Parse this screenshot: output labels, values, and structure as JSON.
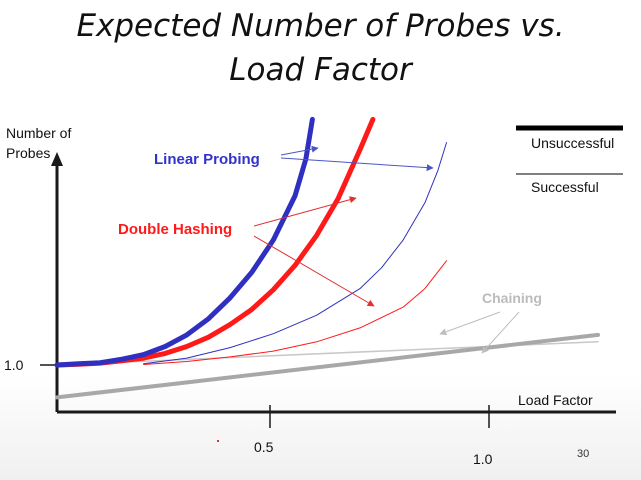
{
  "slide": {
    "title_line1": "Expected Number of Probes vs.",
    "title_line2": "Load Factor",
    "page_number": "30"
  },
  "chart_data": {
    "type": "line",
    "title": "Expected Number of Probes vs. Load Factor",
    "xlabel": "Load Factor",
    "ylabel": "Number of Probes",
    "x_ticks": [
      0.5,
      1.0
    ],
    "x_tick_labels": [
      "0.5",
      "1.0"
    ],
    "y_ticks": [
      1.0
    ],
    "y_tick_labels": [
      "1.0"
    ],
    "xlim": [
      0,
      1.25
    ],
    "ylim": [
      0,
      12
    ],
    "grid": false,
    "legend": {
      "position": "top-right",
      "entries": [
        {
          "label": "Unsuccessful",
          "style": "thick",
          "color": "#000000"
        },
        {
          "label": "Successful",
          "style": "thin",
          "color": "#000000"
        }
      ]
    },
    "series": [
      {
        "name": "Linear Probing",
        "case": "Unsuccessful",
        "color": "#3030c0",
        "style": "thick",
        "x": [
          0,
          0.05,
          0.1,
          0.15,
          0.2,
          0.25,
          0.3,
          0.35,
          0.4,
          0.45,
          0.5,
          0.55,
          0.575,
          0.59
        ],
        "y": [
          1.0,
          1.05,
          1.1,
          1.25,
          1.45,
          1.8,
          2.3,
          3.0,
          3.9,
          5.0,
          6.4,
          8.3,
          9.9,
          11.6
        ]
      },
      {
        "name": "Double Hashing",
        "case": "Unsuccessful",
        "color": "#ff1a1a",
        "style": "thick",
        "x": [
          0,
          0.05,
          0.1,
          0.15,
          0.2,
          0.25,
          0.3,
          0.35,
          0.4,
          0.45,
          0.5,
          0.55,
          0.6,
          0.65,
          0.7,
          0.73
        ],
        "y": [
          1.0,
          1.03,
          1.08,
          1.18,
          1.3,
          1.5,
          1.8,
          2.2,
          2.75,
          3.4,
          4.25,
          5.3,
          6.6,
          8.2,
          10.3,
          11.6
        ]
      },
      {
        "name": "Linear Probing",
        "case": "Successful",
        "color": "#3030c0",
        "style": "thin",
        "x": [
          0.2,
          0.3,
          0.4,
          0.5,
          0.6,
          0.7,
          0.75,
          0.8,
          0.85,
          0.88,
          0.9
        ],
        "y": [
          1.05,
          1.3,
          1.75,
          2.35,
          3.15,
          4.3,
          5.2,
          6.4,
          8.0,
          9.4,
          10.6
        ]
      },
      {
        "name": "Double Hashing",
        "case": "Successful",
        "color": "#ff1a1a",
        "style": "thin",
        "x": [
          0.2,
          0.3,
          0.4,
          0.5,
          0.6,
          0.7,
          0.8,
          0.85,
          0.9
        ],
        "y": [
          1.02,
          1.15,
          1.35,
          1.6,
          2.0,
          2.6,
          3.5,
          4.3,
          5.5
        ]
      },
      {
        "name": "Chaining",
        "case": "Unsuccessful",
        "color": "#a8a8a8",
        "style": "thick",
        "x": [
          0,
          1.25
        ],
        "y": [
          -0.4,
          2.3
        ]
      },
      {
        "name": "Chaining",
        "case": "Successful",
        "color": "#c8c8c8",
        "style": "thin",
        "x": [
          0,
          1.25
        ],
        "y": [
          1.0,
          2.0
        ]
      }
    ],
    "annotations": [
      {
        "text": "Linear Probing",
        "color": "#3333cc"
      },
      {
        "text": "Double Hashing",
        "color": "#ff1a1a"
      },
      {
        "text": "Chaining",
        "color": "#bbbbbb"
      }
    ]
  }
}
